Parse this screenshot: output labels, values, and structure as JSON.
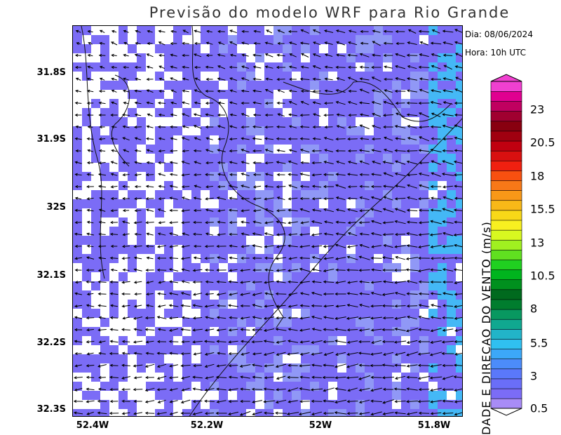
{
  "title": "Previsão do modelo WRF para Rio Grande",
  "info": {
    "date": "Dia: 08/06/2024",
    "time": "Hora: 10h UTC"
  },
  "axes": {
    "lat_ticks": [
      "31.8S",
      "31.9S",
      "32S",
      "32.1S",
      "32.2S",
      "32.3S"
    ],
    "lon_ticks": [
      "52.4W",
      "52.2W",
      "52W",
      "51.8W"
    ]
  },
  "colorbar": {
    "title": "DADE E DIRECAO DO VENTO (m/s)",
    "ticks": [
      "0.5",
      "3",
      "5.5",
      "8",
      "10.5",
      "13",
      "15.5",
      "18",
      "20.5",
      "23"
    ],
    "colors": [
      "#a88cf6",
      "#7b6cf6",
      "#6a6ef8",
      "#5a78fa",
      "#4c8cfa",
      "#3ca8f8",
      "#30c0f0",
      "#22b4c8",
      "#10a890",
      "#089860",
      "#007d2e",
      "#006a1e",
      "#00901e",
      "#00b41e",
      "#20d020",
      "#60e020",
      "#a0f020",
      "#d8f820",
      "#f8f020",
      "#f8d818",
      "#f8b818",
      "#f89818",
      "#f87818",
      "#f85010",
      "#f02010",
      "#d81010",
      "#c00010",
      "#a00010",
      "#880010",
      "#a00030",
      "#c00060",
      "#e00090",
      "#f040d0"
    ]
  },
  "map_colors": {
    "background": "#7b6cf6",
    "light": "#9098f6",
    "cyan": "#44b8f6",
    "calm": "#ffffff"
  }
}
